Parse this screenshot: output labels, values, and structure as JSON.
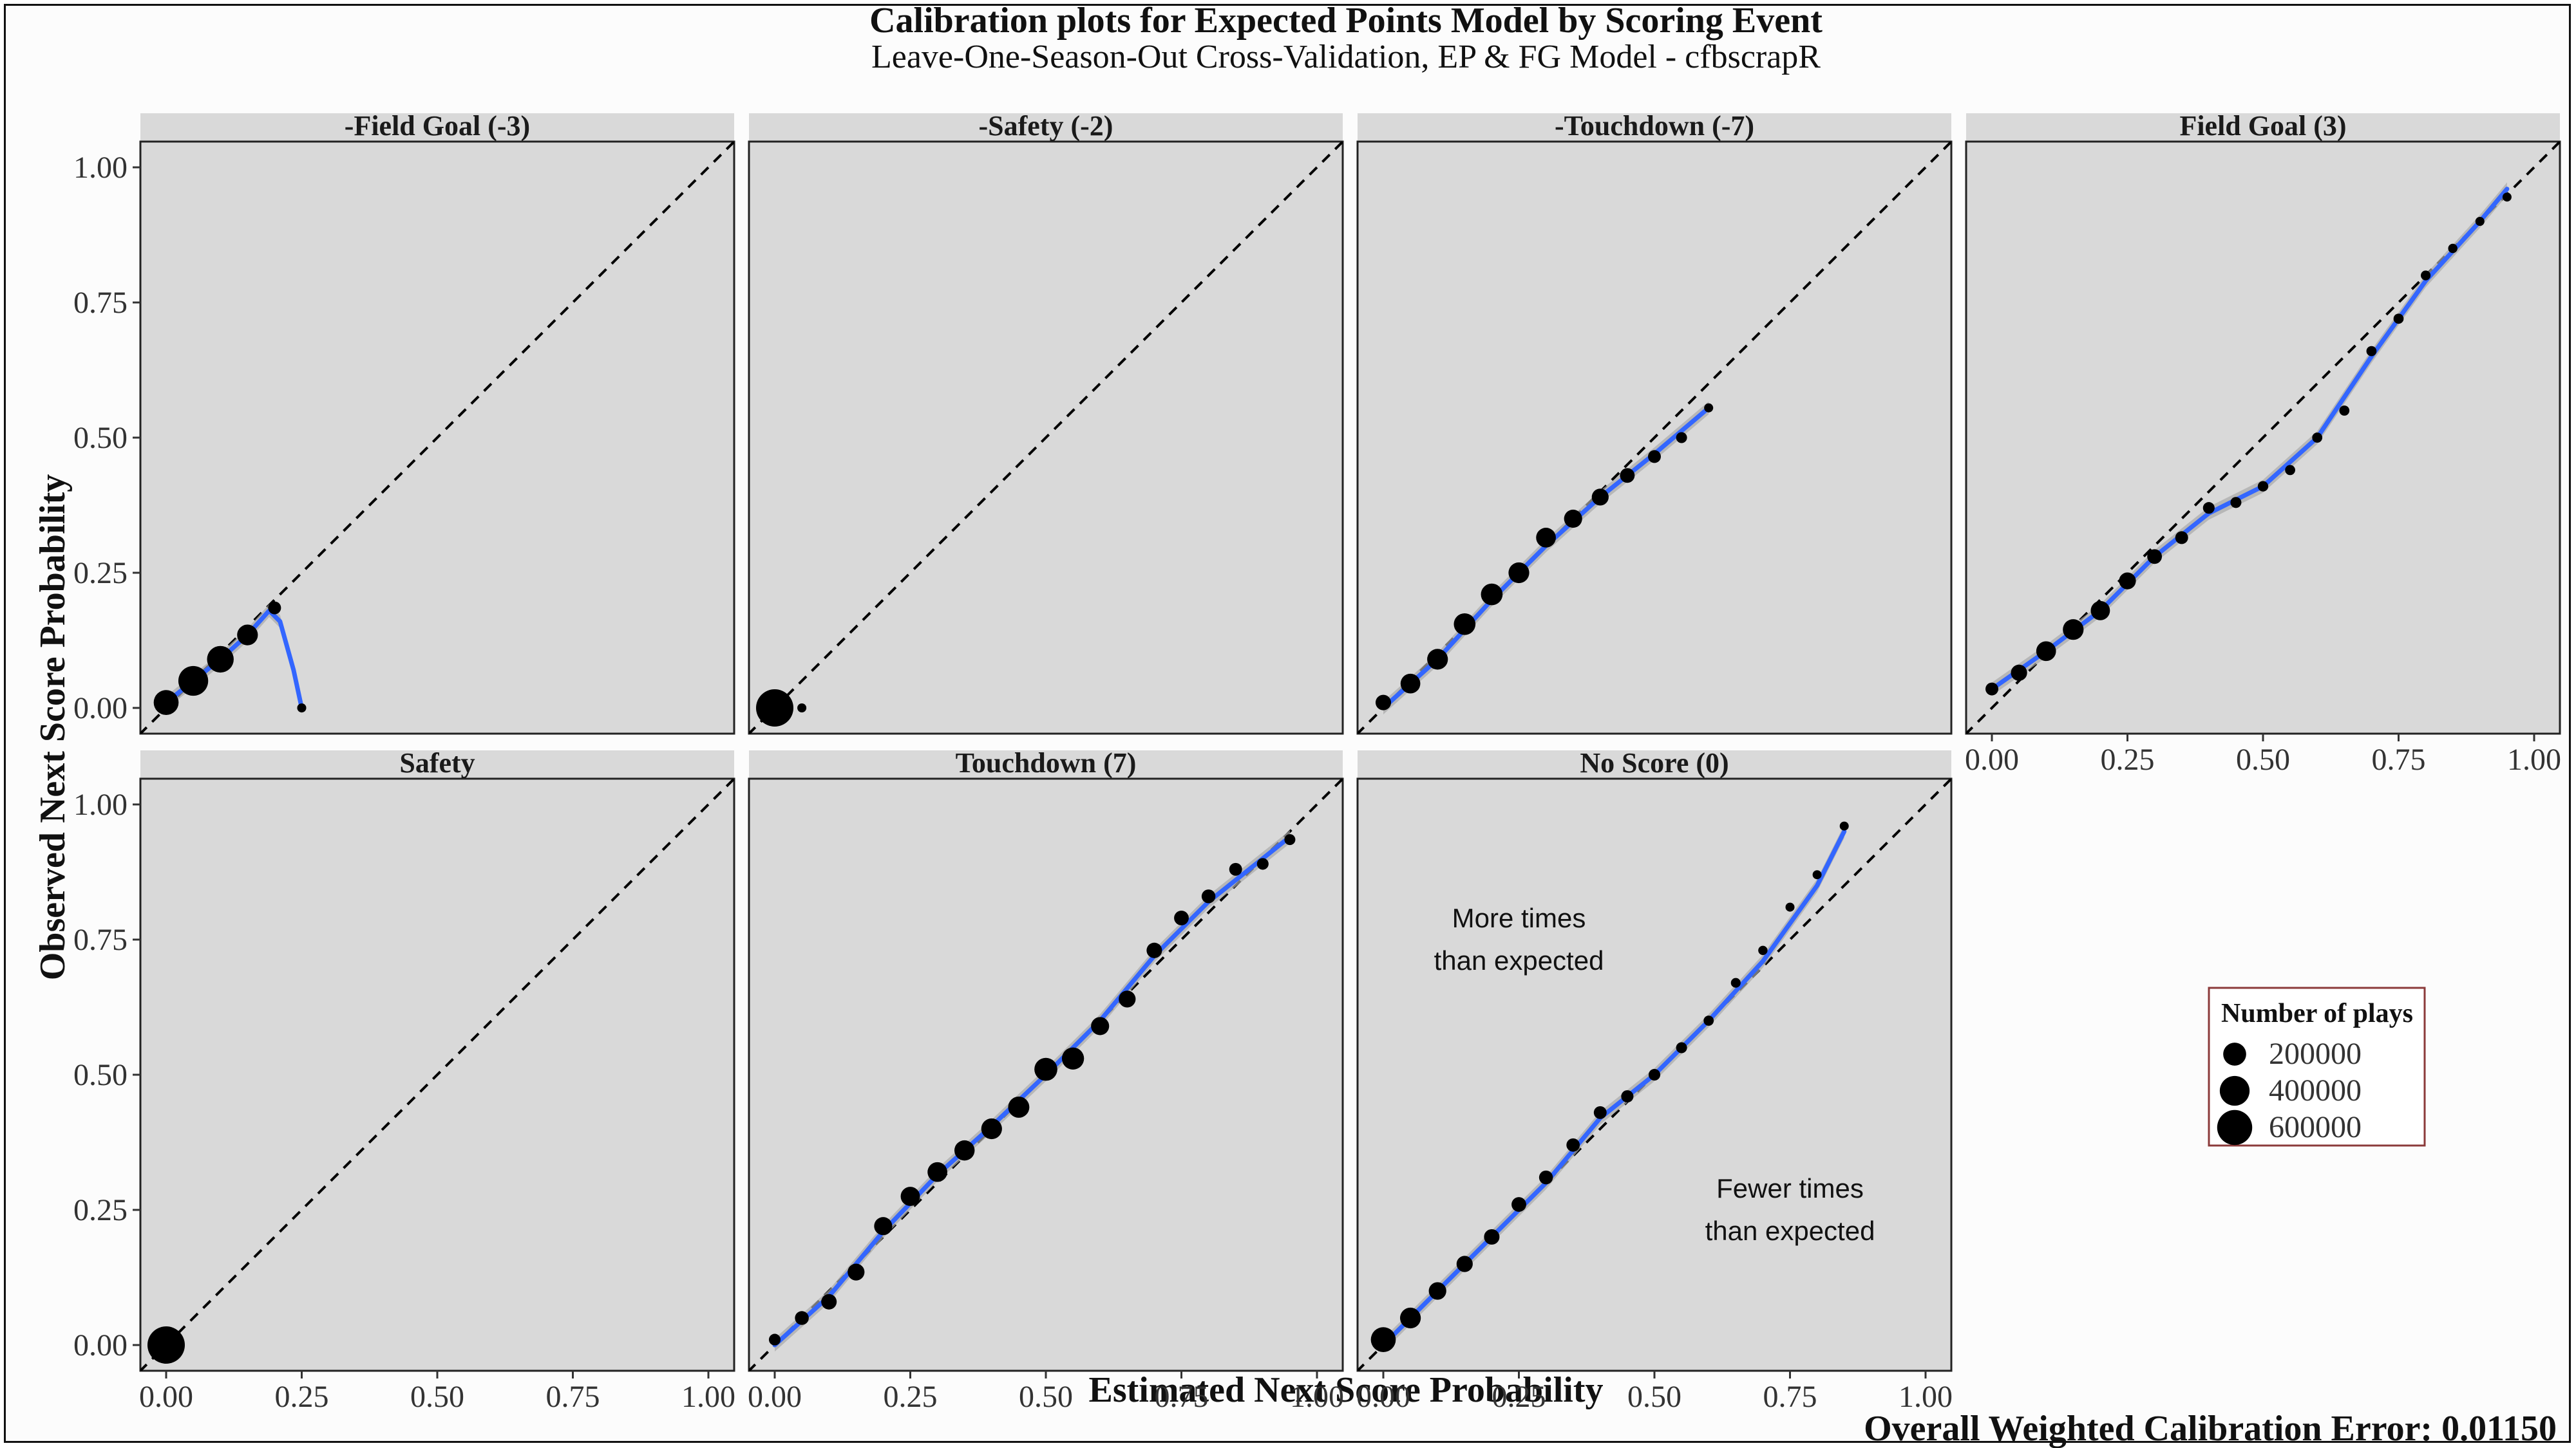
{
  "title": "Calibration plots for Expected Points Model by Scoring Event",
  "subtitle": "Leave-One-Season-Out Cross-Validation, EP & FG Model - cfbscrapR",
  "xlabel": "Estimated Next Score Probability",
  "ylabel": "Observed Next Score Probability",
  "caption": "Overall Weighted Calibration Error: 0.01150",
  "legend": {
    "title": "Number of plays",
    "entries": [
      {
        "label": "200000",
        "value": 200000
      },
      {
        "label": "400000",
        "value": 400000
      },
      {
        "label": "600000",
        "value": 600000
      }
    ]
  },
  "colors": {
    "panel_background": "#d9d9d9",
    "strip_background": "#d9d9d9",
    "point": "#000000",
    "smooth_line": "#3366ff",
    "smooth_band": "#a8a8a8",
    "reference_line": "#000000"
  },
  "chart_data": {
    "type": "scatter",
    "xlim": [
      0,
      1
    ],
    "ylim": [
      0,
      1
    ],
    "x_ticks": [
      "0.00",
      "0.25",
      "0.50",
      "0.75",
      "1.00"
    ],
    "y_ticks": [
      "0.00",
      "0.25",
      "0.50",
      "0.75",
      "1.00"
    ],
    "reference_line": "y = x (dashed)",
    "smooth": "loess with confidence band",
    "grid": false,
    "legend_position": "right",
    "panels": [
      {
        "label": "-Field Goal (-3)",
        "points": [
          {
            "x": 0.0,
            "y": 0.01,
            "n": 250000
          },
          {
            "x": 0.05,
            "y": 0.05,
            "n": 400000
          },
          {
            "x": 0.1,
            "y": 0.09,
            "n": 300000
          },
          {
            "x": 0.15,
            "y": 0.135,
            "n": 150000
          },
          {
            "x": 0.2,
            "y": 0.185,
            "n": 30000
          },
          {
            "x": 0.25,
            "y": 0.0,
            "n": 5000
          }
        ],
        "smooth": [
          [
            0.0,
            0.01
          ],
          [
            0.05,
            0.05
          ],
          [
            0.1,
            0.09
          ],
          [
            0.15,
            0.135
          ],
          [
            0.19,
            0.18
          ],
          [
            0.21,
            0.16
          ],
          [
            0.235,
            0.07
          ],
          [
            0.25,
            0.0
          ]
        ]
      },
      {
        "label": "-Safety (-2)",
        "points": [
          {
            "x": 0.0,
            "y": 0.0,
            "n": 700000
          },
          {
            "x": 0.05,
            "y": 0.0,
            "n": 5000
          }
        ],
        "smooth": []
      },
      {
        "label": "-Touchdown (-7)",
        "points": [
          {
            "x": 0.0,
            "y": 0.01,
            "n": 60000
          },
          {
            "x": 0.05,
            "y": 0.045,
            "n": 130000
          },
          {
            "x": 0.1,
            "y": 0.09,
            "n": 150000
          },
          {
            "x": 0.15,
            "y": 0.155,
            "n": 170000
          },
          {
            "x": 0.2,
            "y": 0.21,
            "n": 170000
          },
          {
            "x": 0.25,
            "y": 0.25,
            "n": 150000
          },
          {
            "x": 0.3,
            "y": 0.315,
            "n": 130000
          },
          {
            "x": 0.35,
            "y": 0.35,
            "n": 100000
          },
          {
            "x": 0.4,
            "y": 0.39,
            "n": 80000
          },
          {
            "x": 0.45,
            "y": 0.43,
            "n": 50000
          },
          {
            "x": 0.5,
            "y": 0.465,
            "n": 30000
          },
          {
            "x": 0.55,
            "y": 0.5,
            "n": 15000
          },
          {
            "x": 0.6,
            "y": 0.555,
            "n": 5000
          }
        ],
        "smooth": [
          [
            0.0,
            0.0
          ],
          [
            0.1,
            0.09
          ],
          [
            0.2,
            0.2
          ],
          [
            0.3,
            0.3
          ],
          [
            0.4,
            0.39
          ],
          [
            0.5,
            0.47
          ],
          [
            0.6,
            0.555
          ]
        ]
      },
      {
        "label": "Field Goal (3)",
        "points": [
          {
            "x": 0.0,
            "y": 0.035,
            "n": 30000
          },
          {
            "x": 0.05,
            "y": 0.065,
            "n": 70000
          },
          {
            "x": 0.1,
            "y": 0.105,
            "n": 130000
          },
          {
            "x": 0.15,
            "y": 0.145,
            "n": 150000
          },
          {
            "x": 0.2,
            "y": 0.18,
            "n": 120000
          },
          {
            "x": 0.25,
            "y": 0.235,
            "n": 80000
          },
          {
            "x": 0.3,
            "y": 0.28,
            "n": 50000
          },
          {
            "x": 0.35,
            "y": 0.315,
            "n": 30000
          },
          {
            "x": 0.4,
            "y": 0.37,
            "n": 20000
          },
          {
            "x": 0.45,
            "y": 0.38,
            "n": 15000
          },
          {
            "x": 0.5,
            "y": 0.41,
            "n": 12000
          },
          {
            "x": 0.55,
            "y": 0.44,
            "n": 10000
          },
          {
            "x": 0.6,
            "y": 0.5,
            "n": 10000
          },
          {
            "x": 0.65,
            "y": 0.55,
            "n": 10000
          },
          {
            "x": 0.7,
            "y": 0.66,
            "n": 10000
          },
          {
            "x": 0.75,
            "y": 0.72,
            "n": 10000
          },
          {
            "x": 0.8,
            "y": 0.8,
            "n": 8000
          },
          {
            "x": 0.85,
            "y": 0.85,
            "n": 6000
          },
          {
            "x": 0.9,
            "y": 0.9,
            "n": 5000
          },
          {
            "x": 0.95,
            "y": 0.945,
            "n": 3000
          }
        ],
        "smooth": [
          [
            0.0,
            0.035
          ],
          [
            0.1,
            0.105
          ],
          [
            0.2,
            0.18
          ],
          [
            0.3,
            0.28
          ],
          [
            0.4,
            0.36
          ],
          [
            0.5,
            0.41
          ],
          [
            0.6,
            0.5
          ],
          [
            0.7,
            0.65
          ],
          [
            0.8,
            0.79
          ],
          [
            0.9,
            0.9
          ],
          [
            0.95,
            0.96
          ]
        ]
      },
      {
        "label": "Safety",
        "points": [
          {
            "x": 0.0,
            "y": 0.0,
            "n": 700000
          }
        ],
        "smooth": []
      },
      {
        "label": "Touchdown (7)",
        "points": [
          {
            "x": 0.0,
            "y": 0.01,
            "n": 20000
          },
          {
            "x": 0.05,
            "y": 0.05,
            "n": 40000
          },
          {
            "x": 0.1,
            "y": 0.08,
            "n": 60000
          },
          {
            "x": 0.15,
            "y": 0.135,
            "n": 80000
          },
          {
            "x": 0.2,
            "y": 0.22,
            "n": 100000
          },
          {
            "x": 0.25,
            "y": 0.275,
            "n": 120000
          },
          {
            "x": 0.3,
            "y": 0.32,
            "n": 130000
          },
          {
            "x": 0.35,
            "y": 0.36,
            "n": 140000
          },
          {
            "x": 0.4,
            "y": 0.4,
            "n": 150000
          },
          {
            "x": 0.45,
            "y": 0.44,
            "n": 160000
          },
          {
            "x": 0.5,
            "y": 0.51,
            "n": 200000
          },
          {
            "x": 0.55,
            "y": 0.53,
            "n": 180000
          },
          {
            "x": 0.6,
            "y": 0.59,
            "n": 100000
          },
          {
            "x": 0.65,
            "y": 0.64,
            "n": 80000
          },
          {
            "x": 0.7,
            "y": 0.73,
            "n": 60000
          },
          {
            "x": 0.75,
            "y": 0.79,
            "n": 50000
          },
          {
            "x": 0.8,
            "y": 0.83,
            "n": 40000
          },
          {
            "x": 0.85,
            "y": 0.88,
            "n": 30000
          },
          {
            "x": 0.9,
            "y": 0.89,
            "n": 20000
          },
          {
            "x": 0.95,
            "y": 0.935,
            "n": 15000
          }
        ],
        "smooth": [
          [
            0.0,
            0.0
          ],
          [
            0.1,
            0.09
          ],
          [
            0.2,
            0.21
          ],
          [
            0.3,
            0.315
          ],
          [
            0.4,
            0.405
          ],
          [
            0.5,
            0.5
          ],
          [
            0.6,
            0.6
          ],
          [
            0.7,
            0.72
          ],
          [
            0.8,
            0.82
          ],
          [
            0.9,
            0.9
          ],
          [
            0.95,
            0.94
          ]
        ]
      },
      {
        "label": "No Score (0)",
        "points": [
          {
            "x": 0.0,
            "y": 0.01,
            "n": 250000
          },
          {
            "x": 0.05,
            "y": 0.05,
            "n": 150000
          },
          {
            "x": 0.1,
            "y": 0.1,
            "n": 90000
          },
          {
            "x": 0.15,
            "y": 0.15,
            "n": 70000
          },
          {
            "x": 0.2,
            "y": 0.2,
            "n": 60000
          },
          {
            "x": 0.25,
            "y": 0.26,
            "n": 50000
          },
          {
            "x": 0.3,
            "y": 0.31,
            "n": 40000
          },
          {
            "x": 0.35,
            "y": 0.37,
            "n": 35000
          },
          {
            "x": 0.4,
            "y": 0.43,
            "n": 30000
          },
          {
            "x": 0.45,
            "y": 0.46,
            "n": 25000
          },
          {
            "x": 0.5,
            "y": 0.5,
            "n": 20000
          },
          {
            "x": 0.55,
            "y": 0.55,
            "n": 15000
          },
          {
            "x": 0.6,
            "y": 0.6,
            "n": 10000
          },
          {
            "x": 0.65,
            "y": 0.67,
            "n": 8000
          },
          {
            "x": 0.7,
            "y": 0.73,
            "n": 6000
          },
          {
            "x": 0.75,
            "y": 0.81,
            "n": 4000
          },
          {
            "x": 0.8,
            "y": 0.87,
            "n": 3000
          },
          {
            "x": 0.85,
            "y": 0.96,
            "n": 2000
          }
        ],
        "smooth": [
          [
            0.0,
            0.0
          ],
          [
            0.1,
            0.1
          ],
          [
            0.2,
            0.2
          ],
          [
            0.3,
            0.3
          ],
          [
            0.4,
            0.42
          ],
          [
            0.5,
            0.5
          ],
          [
            0.6,
            0.6
          ],
          [
            0.7,
            0.71
          ],
          [
            0.8,
            0.85
          ],
          [
            0.85,
            0.95
          ]
        ],
        "annotations": [
          {
            "lines": [
              "More times",
              "than expected"
            ],
            "x": 0.25,
            "y": 0.75
          },
          {
            "lines": [
              "Fewer times",
              "than expected"
            ],
            "x": 0.75,
            "y": 0.25
          }
        ]
      }
    ]
  }
}
